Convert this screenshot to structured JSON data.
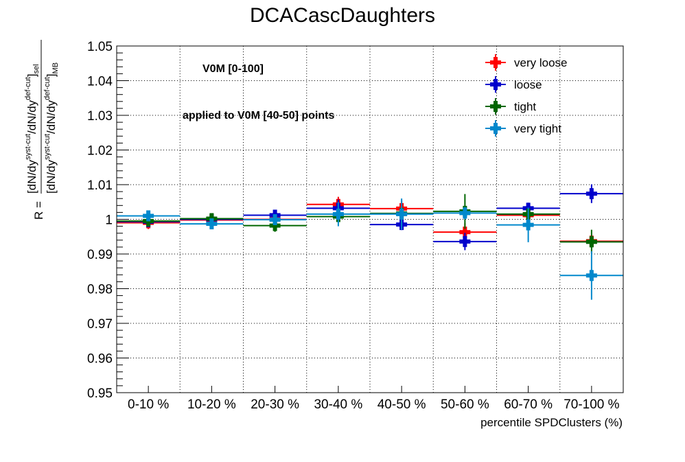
{
  "chart_data": {
    "type": "scatter",
    "title": "DCACascDaughters",
    "xlabel": "percentile SPDClusters (%)",
    "ylabel": {
      "prefix": "R =",
      "numerator": [
        "[dN/dy",
        "syst-cut",
        "/dN/dy",
        "def-cut",
        "]",
        "sel"
      ],
      "denominator": [
        "[dN/dy",
        "syst-cut",
        "/dN/dy",
        "def-cut",
        "]",
        "MB"
      ]
    },
    "categories": [
      "0-10 %",
      "10-20 %",
      "20-30 %",
      "30-40 %",
      "40-50 %",
      "50-60 %",
      "60-70 %",
      "70-100 %"
    ],
    "ylim": [
      0.95,
      1.05
    ],
    "yticks": [
      "0.95",
      "0.96",
      "0.97",
      "0.98",
      "0.99",
      "1",
      "1.01",
      "1.02",
      "1.03",
      "1.04",
      "1.05"
    ],
    "grid": true,
    "legend_position": "top-right",
    "annotations": [
      "V0M [0-100]",
      "applied to V0M [40-50] points"
    ],
    "series": [
      {
        "name": "very loose",
        "color": "#ff0000",
        "values": [
          0.999,
          0.9998,
          1.0,
          1.0043,
          1.0031,
          0.9963,
          1.0012,
          0.9937
        ],
        "errors": [
          0.0018,
          0.001,
          0.0016,
          0.0022,
          0.0022,
          0.0026,
          0.0015,
          0.0018
        ]
      },
      {
        "name": "loose",
        "color": "#0000cc",
        "values": [
          0.9993,
          1.0,
          1.0012,
          1.0032,
          0.9985,
          0.9936,
          1.0032,
          1.0074
        ],
        "errors": [
          0.001,
          0.001,
          0.0015,
          0.0025,
          0.0016,
          0.0025,
          0.0016,
          0.0027
        ]
      },
      {
        "name": "tight",
        "color": "#006600",
        "values": [
          0.9995,
          1.0002,
          0.9982,
          1.0008,
          1.0017,
          1.0023,
          1.0015,
          0.9935
        ],
        "errors": [
          0.001,
          0.0012,
          0.0018,
          0.0014,
          0.002,
          0.005,
          0.0018,
          0.0035
        ]
      },
      {
        "name": "very tight",
        "color": "#0088cc",
        "values": [
          1.001,
          0.9987,
          0.9999,
          1.0015,
          1.0015,
          1.0018,
          0.9984,
          0.9838
        ],
        "errors": [
          0.0012,
          0.001,
          0.0012,
          0.0035,
          0.0045,
          0.0018,
          0.005,
          0.007
        ]
      }
    ]
  }
}
